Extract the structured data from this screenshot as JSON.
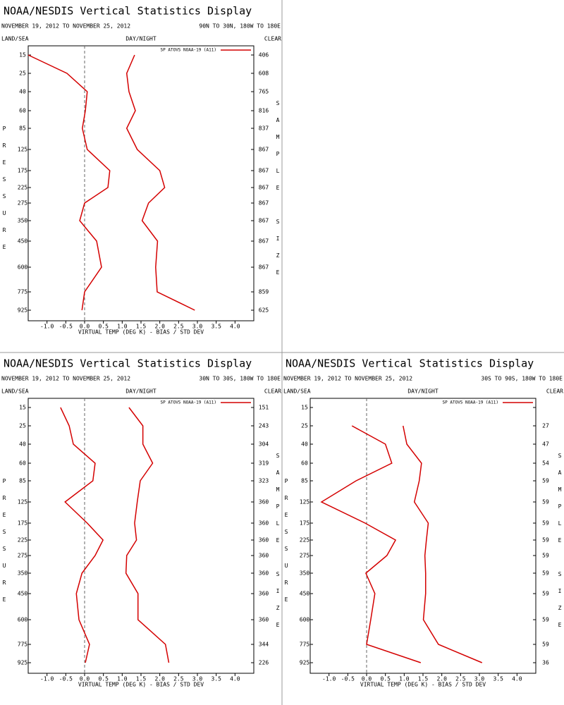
{
  "chart_data": [
    {
      "type": "line",
      "title": "NOAA/NESDIS Vertical Statistics Display",
      "subtitle": "NOVEMBER 19, 2012 TO NOVEMBER 25, 2012",
      "region": "90N TO 30N, 180W TO 180E",
      "label_left": "LAND/SEA",
      "label_center": "DAY/NIGHT",
      "label_right": "CLEAR",
      "ylabel": "PRESSURE",
      "y2label": "SAMPLE SIZE",
      "xlabel": "VIRTUAL TEMP (DEG K) - BIAS / STD DEV",
      "legend": "SP ATOVS NOAA-19 (A11)",
      "categories": [
        "15",
        "25",
        "40",
        "60",
        "85",
        "125",
        "175",
        "225",
        "275",
        "350",
        "450",
        "600",
        "775",
        "925"
      ],
      "sample_size": [
        406,
        608,
        765,
        816,
        837,
        867,
        867,
        867,
        867,
        867,
        867,
        867,
        859,
        625
      ],
      "series": [
        {
          "color": "#d40000",
          "values": [
            -1.5,
            -0.47,
            0.07,
            0.02,
            -0.06,
            0.07,
            0.67,
            0.62,
            0.0,
            -0.13,
            0.32,
            0.45,
            0.0,
            -0.07
          ]
        },
        {
          "color": "#d40000",
          "values": [
            1.33,
            1.12,
            1.18,
            1.35,
            1.12,
            1.4,
            2.0,
            2.13,
            1.7,
            1.53,
            1.94,
            1.89,
            1.93,
            2.93
          ]
        }
      ],
      "xlim": [
        -1.5,
        4.5
      ],
      "xticks": [
        {
          "value": -1,
          "label": "-1.0"
        },
        -0.5,
        {
          "value": 0,
          "label": "0.0"
        },
        0.5,
        {
          "value": 1,
          "label": "1.0"
        },
        1.5,
        {
          "value": 2,
          "label": "2.0"
        },
        2.5,
        {
          "value": 3,
          "label": "3.0"
        },
        3.5,
        {
          "value": 4,
          "label": "4.0"
        }
      ]
    },
    {
      "type": "line",
      "title": "NOAA/NESDIS Vertical Statistics Display",
      "subtitle": "NOVEMBER 19, 2012 TO NOVEMBER 25, 2012",
      "region": "30N TO 30S, 180W TO 180E",
      "label_left": "LAND/SEA",
      "label_center": "DAY/NIGHT",
      "label_right": "CLEAR",
      "ylabel": "PRESSURE",
      "y2label": "SAMPLE SIZE",
      "xlabel": "VIRTUAL TEMP (DEG K) - BIAS / STD DEV",
      "legend": "SP ATOVS NOAA-19 (A11)",
      "categories": [
        "15",
        "25",
        "40",
        "60",
        "85",
        "125",
        "175",
        "225",
        "275",
        "350",
        "450",
        "600",
        "775",
        "925"
      ],
      "sample_size": [
        151,
        243,
        304,
        319,
        323,
        360,
        360,
        360,
        360,
        360,
        360,
        360,
        344,
        226
      ],
      "series": [
        {
          "color": "#d40000",
          "values": [
            -0.64,
            -0.41,
            -0.3,
            0.28,
            0.22,
            -0.52,
            0.07,
            0.49,
            0.28,
            -0.07,
            -0.22,
            -0.15,
            0.13,
            0.02
          ]
        },
        {
          "color": "#d40000",
          "values": [
            1.18,
            1.55,
            1.55,
            1.81,
            1.48,
            1.4,
            1.33,
            1.38,
            1.12,
            1.1,
            1.42,
            1.42,
            2.15,
            2.24
          ]
        }
      ],
      "xlim": [
        -1.5,
        4.5
      ],
      "xticks": [
        {
          "value": -1,
          "label": "-1.0"
        },
        -0.5,
        {
          "value": 0,
          "label": "0.0"
        },
        0.5,
        {
          "value": 1,
          "label": "1.0"
        },
        1.5,
        {
          "value": 2,
          "label": "2.0"
        },
        2.5,
        {
          "value": 3,
          "label": "3.0"
        },
        3.5,
        {
          "value": 4,
          "label": "4.0"
        }
      ]
    },
    {
      "type": "line",
      "title": "NOAA/NESDIS Vertical Statistics Display",
      "subtitle": "NOVEMBER 19, 2012 TO NOVEMBER 25, 2012",
      "region": "30S TO 90S, 180W TO 180E",
      "label_left": "LAND/SEA",
      "label_center": "DAY/NIGHT",
      "label_right": "CLEAR",
      "ylabel": "PRESSURE",
      "y2label": "SAMPLE SIZE",
      "xlabel": "VIRTUAL TEMP (DEG K) - BIAS / STD DEV",
      "legend": "SP ATOVS NOAA-19 (A11)",
      "categories": [
        "15",
        "25",
        "40",
        "60",
        "85",
        "125",
        "175",
        "225",
        "275",
        "350",
        "450",
        "600",
        "775",
        "925"
      ],
      "sample_size": [
        null,
        27,
        47,
        54,
        59,
        59,
        59,
        59,
        59,
        59,
        59,
        59,
        59,
        36
      ],
      "series": [
        {
          "color": "#d40000",
          "values": [
            null,
            -0.39,
            0.5,
            0.67,
            -0.28,
            -1.2,
            -0.04,
            0.77,
            0.54,
            -0.02,
            0.22,
            0.11,
            0.0,
            1.44
          ]
        },
        {
          "color": "#d40000",
          "values": [
            null,
            0.97,
            1.07,
            1.46,
            1.4,
            1.27,
            1.64,
            1.59,
            1.55,
            1.57,
            1.57,
            1.51,
            1.91,
            3.07
          ]
        }
      ],
      "xlim": [
        -1.5,
        4.5
      ],
      "xticks": [
        {
          "value": -1,
          "label": "-1.0"
        },
        -0.5,
        {
          "value": 0,
          "label": "0.0"
        },
        0.5,
        {
          "value": 1,
          "label": "1.0"
        },
        1.5,
        {
          "value": 2,
          "label": "2.0"
        },
        2.5,
        {
          "value": 3,
          "label": "3.0"
        },
        3.5,
        {
          "value": 4,
          "label": "4.0"
        }
      ]
    }
  ]
}
